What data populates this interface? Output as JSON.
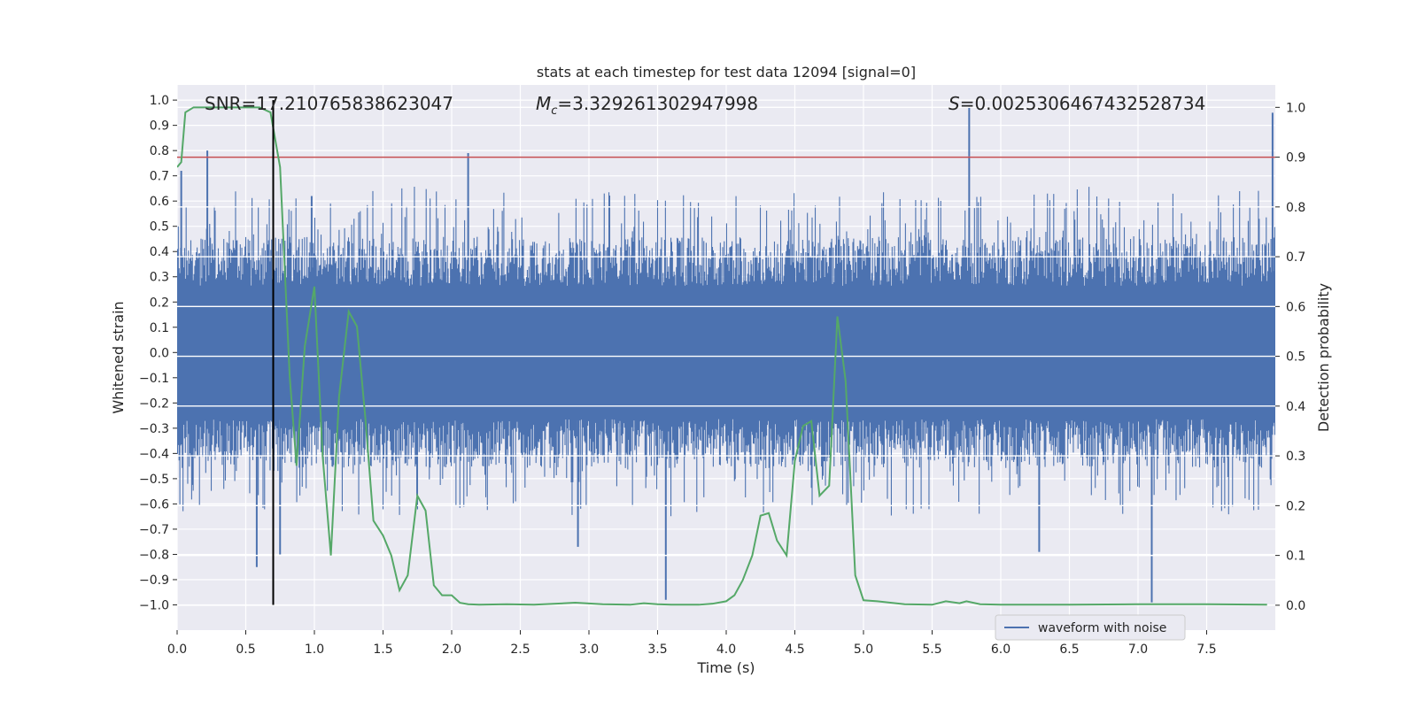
{
  "chart_data": {
    "type": "line",
    "title": "stats at each timestep for test data 12094 [signal=0]",
    "xlabel": "Time (s)",
    "ylabel": "Whitened strain",
    "y2label": "Detection probability",
    "xlim": [
      0,
      8
    ],
    "ylim": [
      -1.1,
      1.06
    ],
    "y2lim": [
      -0.05,
      1.045
    ],
    "x_ticks": [
      "0.0",
      "0.5",
      "1.0",
      "1.5",
      "2.0",
      "2.5",
      "3.0",
      "3.5",
      "4.0",
      "4.5",
      "5.0",
      "5.5",
      "6.0",
      "6.5",
      "7.0",
      "7.5"
    ],
    "y_ticks": [
      "1.0",
      "0.9",
      "0.8",
      "0.7",
      "0.6",
      "0.5",
      "0.4",
      "0.3",
      "0.2",
      "0.1",
      "0.0",
      "-0.1",
      "-0.2",
      "-0.3",
      "-0.4",
      "-0.5",
      "-0.6",
      "-0.7",
      "-0.8",
      "-0.9",
      "-1.0"
    ],
    "y2_ticks": [
      "1.0",
      "0.9",
      "0.8",
      "0.7",
      "0.6",
      "0.5",
      "0.4",
      "0.3",
      "0.2",
      "0.1",
      "0.0"
    ],
    "annotations": {
      "snr": "SNR=17.210765838623047",
      "mc_symbol": "M",
      "mc_sub": "c",
      "mc_value": "=3.329261302947998",
      "s_symbol": "S",
      "s_value": "=0.002530646743252873​4"
    },
    "threshold_line": {
      "y2": 0.9,
      "color": "#c44e52"
    },
    "marker_line": {
      "x": 0.7,
      "color": "#000000"
    },
    "legend": {
      "entries": [
        "waveform with noise"
      ],
      "placement": "lower-right"
    },
    "waveform_spikes": [
      {
        "x": 0.03,
        "y": 0.72
      },
      {
        "x": 0.22,
        "y": 0.8
      },
      {
        "x": 0.58,
        "y": -0.85
      },
      {
        "x": 0.75,
        "y": -0.8
      },
      {
        "x": 0.98,
        "y": 0.62
      },
      {
        "x": 2.12,
        "y": 0.79
      },
      {
        "x": 2.92,
        "y": -0.77
      },
      {
        "x": 3.56,
        "y": -0.98
      },
      {
        "x": 5.77,
        "y": 0.98
      },
      {
        "x": 6.28,
        "y": -0.79
      },
      {
        "x": 7.1,
        "y": -0.99
      },
      {
        "x": 7.98,
        "y": 0.95
      }
    ],
    "series": [
      {
        "name": "waveform with noise",
        "color": "#4c72b0",
        "band_core": [
          -0.22,
          0.22
        ],
        "band_typical": [
          -0.48,
          0.48
        ]
      },
      {
        "color": "#55a868",
        "axis": "y2",
        "x": [
          0.0,
          0.03,
          0.06,
          0.12,
          0.2,
          0.3,
          0.4,
          0.5,
          0.6,
          0.68,
          0.75,
          0.82,
          0.87,
          0.93,
          1.0,
          1.06,
          1.12,
          1.18,
          1.25,
          1.31,
          1.37,
          1.43,
          1.5,
          1.56,
          1.62,
          1.68,
          1.75,
          1.81,
          1.87,
          1.93,
          2.0,
          2.06,
          2.12,
          2.2,
          2.4,
          2.6,
          2.9,
          3.1,
          3.3,
          3.4,
          3.5,
          3.6,
          3.8,
          3.9,
          4.0,
          4.06,
          4.12,
          4.19,
          4.25,
          4.31,
          4.37,
          4.44,
          4.5,
          4.56,
          4.62,
          4.68,
          4.75,
          4.81,
          4.87,
          4.94,
          5.0,
          5.1,
          5.3,
          5.5,
          5.6,
          5.7,
          5.75,
          5.85,
          6.0,
          6.5,
          7.0,
          7.5,
          7.94
        ],
        "y": [
          0.88,
          0.89,
          0.99,
          1.0,
          1.0,
          1.0,
          1.0,
          1.0,
          1.0,
          0.99,
          0.88,
          0.46,
          0.28,
          0.52,
          0.64,
          0.3,
          0.1,
          0.42,
          0.59,
          0.56,
          0.38,
          0.17,
          0.14,
          0.1,
          0.03,
          0.06,
          0.22,
          0.19,
          0.04,
          0.02,
          0.02,
          0.005,
          0.002,
          0.001,
          0.002,
          0.001,
          0.005,
          0.002,
          0.001,
          0.004,
          0.002,
          0.001,
          0.001,
          0.003,
          0.008,
          0.02,
          0.05,
          0.1,
          0.18,
          0.185,
          0.13,
          0.1,
          0.29,
          0.36,
          0.37,
          0.22,
          0.24,
          0.58,
          0.45,
          0.06,
          0.01,
          0.008,
          0.002,
          0.001,
          0.008,
          0.004,
          0.008,
          0.002,
          0.001,
          0.001,
          0.002,
          0.002,
          0.001
        ]
      }
    ]
  }
}
